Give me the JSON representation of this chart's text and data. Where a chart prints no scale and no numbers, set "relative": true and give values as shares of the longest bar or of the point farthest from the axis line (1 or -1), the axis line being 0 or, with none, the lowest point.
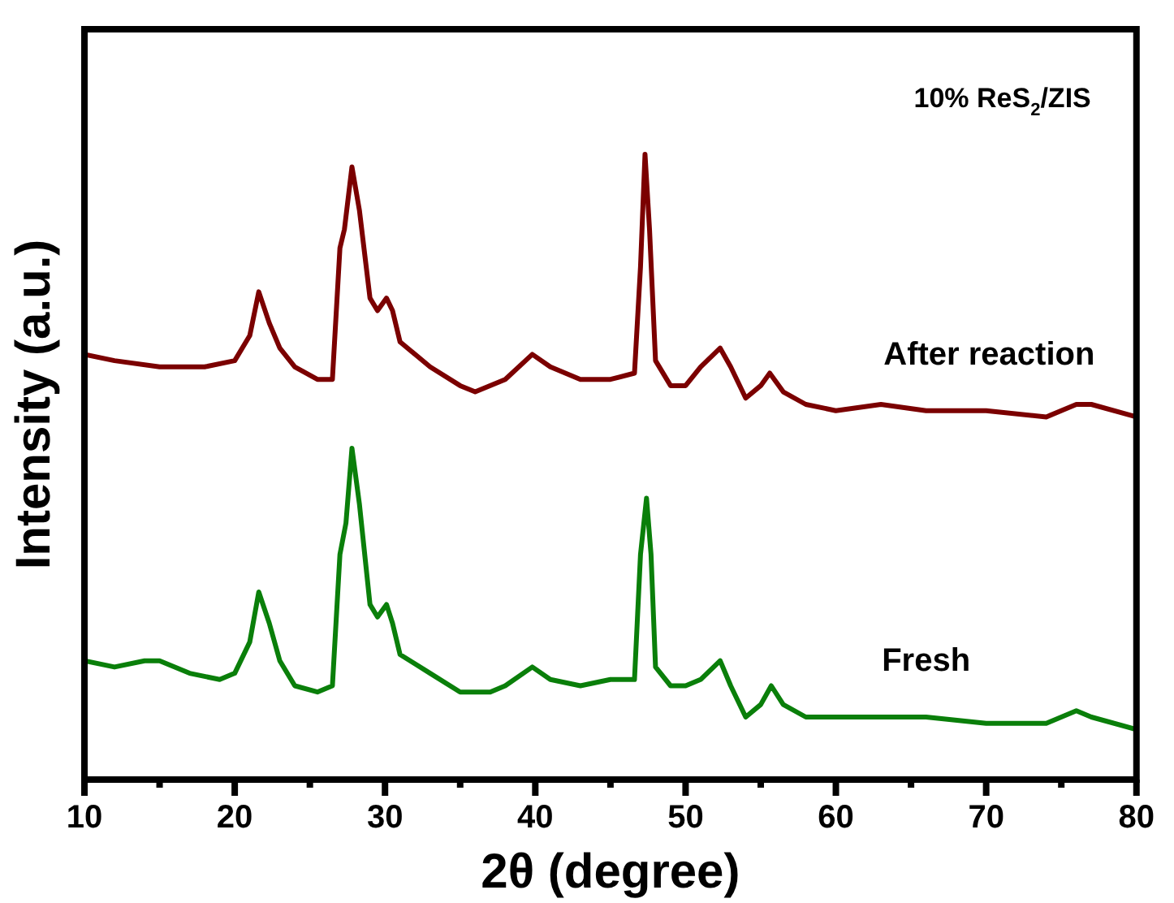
{
  "chart_data": {
    "type": "line",
    "relative": true,
    "xlabel": "2θ (degree)",
    "ylabel": "Intensity (a.u.)",
    "annotations": [
      "10% ReS$_{2}$/ZIS"
    ],
    "xlim": [
      10,
      80
    ],
    "xticks": [
      10,
      {
        "value": 15,
        "label": null
      },
      20,
      {
        "value": 25,
        "label": null
      },
      30,
      {
        "value": 35,
        "label": null
      },
      40,
      {
        "value": 45,
        "label": null
      },
      50,
      {
        "value": 55,
        "label": null
      },
      60,
      {
        "value": 65,
        "label": null
      },
      70,
      {
        "value": 75,
        "label": null
      },
      80
    ],
    "tick_labels": "x",
    "grid": false,
    "legend": false,
    "marker": "none",
    "line_style": "solid",
    "series": [
      {
        "name": "After reaction",
        "color": "#7b0000",
        "x": [
          10,
          12,
          15,
          18,
          20,
          21,
          21.6,
          22.3,
          23,
          24,
          25.5,
          26.5,
          27,
          27.3,
          27.8,
          28.3,
          29,
          29.5,
          30.1,
          30.5,
          31,
          33,
          35,
          36,
          38,
          39.8,
          41,
          43,
          45,
          46.6,
          47,
          47.3,
          47.6,
          48,
          49,
          50,
          51,
          52.3,
          53,
          54,
          55,
          55.6,
          56.5,
          58,
          60,
          63,
          66,
          70,
          74,
          76,
          77,
          80
        ],
        "values": [
          0.68,
          0.67,
          0.66,
          0.66,
          0.67,
          0.71,
          0.78,
          0.73,
          0.69,
          0.66,
          0.64,
          0.64,
          0.85,
          0.88,
          0.98,
          0.91,
          0.77,
          0.75,
          0.77,
          0.75,
          0.7,
          0.66,
          0.63,
          0.62,
          0.64,
          0.68,
          0.66,
          0.64,
          0.64,
          0.65,
          0.82,
          1,
          0.88,
          0.67,
          0.63,
          0.63,
          0.66,
          0.69,
          0.66,
          0.61,
          0.63,
          0.65,
          0.62,
          0.6,
          0.59,
          0.6,
          0.59,
          0.59,
          0.58,
          0.6,
          0.6,
          0.58
        ]
      },
      {
        "name": "Fresh",
        "color": "#0a7f0a",
        "x": [
          10,
          12,
          14,
          15,
          17,
          19,
          20,
          21,
          21.6,
          22.3,
          23,
          24,
          25.5,
          26.5,
          27,
          27.4,
          27.8,
          28.3,
          29,
          29.5,
          30.1,
          30.5,
          31,
          33,
          35,
          37,
          38,
          39.8,
          41,
          43,
          45,
          46.6,
          47,
          47.4,
          47.7,
          48,
          49,
          50,
          51,
          52.3,
          53,
          54,
          55,
          55.7,
          56.5,
          58,
          60,
          63,
          66,
          70,
          74,
          76,
          77,
          80
        ],
        "values": [
          0.19,
          0.18,
          0.19,
          0.19,
          0.17,
          0.16,
          0.17,
          0.22,
          0.3,
          0.25,
          0.19,
          0.15,
          0.14,
          0.15,
          0.36,
          0.41,
          0.53,
          0.44,
          0.28,
          0.26,
          0.28,
          0.25,
          0.2,
          0.17,
          0.14,
          0.14,
          0.15,
          0.18,
          0.16,
          0.15,
          0.16,
          0.16,
          0.36,
          0.45,
          0.36,
          0.18,
          0.15,
          0.15,
          0.16,
          0.19,
          0.15,
          0.1,
          0.12,
          0.15,
          0.12,
          0.1,
          0.1,
          0.1,
          0.1,
          0.09,
          0.09,
          0.11,
          0.1,
          0.08
        ]
      }
    ]
  }
}
